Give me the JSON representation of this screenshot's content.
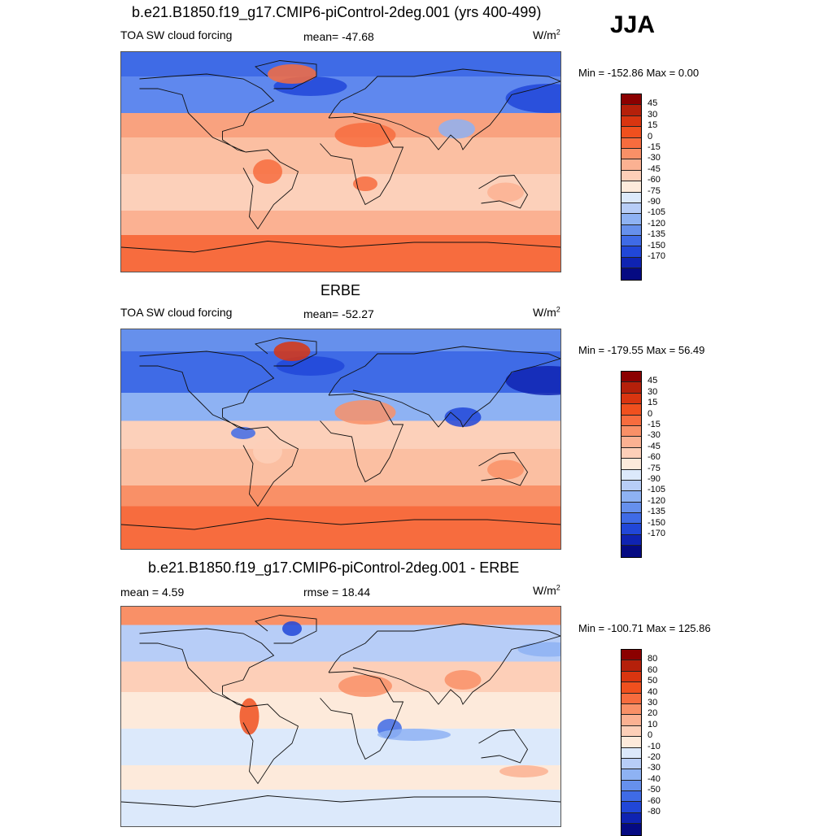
{
  "season": "JJA",
  "panels": [
    {
      "title": "b.e21.B1850.f19_g17.CMIP6-piControl-2deg.001 (yrs 400-499)",
      "left_label": "TOA SW cloud forcing",
      "center_label": "mean= -47.68",
      "unit": "W/m",
      "unit_exp": "2",
      "minmax": "Min = -152.86 Max =   0.00",
      "colorbar": {
        "colors": [
          "#8b0000",
          "#b5200a",
          "#d93510",
          "#f0501e",
          "#f76c3e",
          "#f99067",
          "#fbb192",
          "#fdcfb8",
          "#fdeadb",
          "#dce9fb",
          "#b7cdf7",
          "#8eb2f3",
          "#6690ec",
          "#3f6be6",
          "#2147d8",
          "#0f23b2",
          "#050a82"
        ],
        "ticks": [
          "45",
          "30",
          "15",
          "0",
          "-15",
          "-30",
          "-45",
          "-60",
          "-75",
          "-90",
          "-105",
          "-120",
          "-135",
          "-150",
          "-170"
        ]
      },
      "map": {
        "ocean": "#fbbfa2",
        "bands": [
          {
            "lat_top": 90,
            "lat_bot": 70,
            "color": "#3f6be6"
          },
          {
            "lat_top": 70,
            "lat_bot": 40,
            "color": "#5f88ee"
          },
          {
            "lat_top": 40,
            "lat_bot": 20,
            "color": "#f9a27f"
          },
          {
            "lat_top": 20,
            "lat_bot": -10,
            "color": "#fbbfa2"
          },
          {
            "lat_top": -10,
            "lat_bot": -40,
            "color": "#fcd0ba"
          },
          {
            "lat_top": -40,
            "lat_bot": -60,
            "color": "#fbb192"
          },
          {
            "lat_top": -60,
            "lat_bot": -90,
            "color": "#f76c3e"
          }
        ],
        "blobs": [
          {
            "lon": 170,
            "lat": 52,
            "rx": 35,
            "ry": 12,
            "color": "#2147d8"
          },
          {
            "lon": -25,
            "lat": 62,
            "rx": 30,
            "ry": 8,
            "color": "#2147d8"
          },
          {
            "lon": 95,
            "lat": 27,
            "rx": 15,
            "ry": 8,
            "color": "#8eb2f3"
          },
          {
            "lon": 20,
            "lat": 22,
            "rx": 25,
            "ry": 10,
            "color": "#f76c3e"
          },
          {
            "lon": -60,
            "lat": -8,
            "rx": 12,
            "ry": 10,
            "color": "#f76c3e"
          },
          {
            "lon": -40,
            "lat": 72,
            "rx": 20,
            "ry": 8,
            "color": "#f76c3e"
          },
          {
            "lon": 135,
            "lat": -25,
            "rx": 15,
            "ry": 8,
            "color": "#fbb192"
          },
          {
            "lon": 20,
            "lat": -18,
            "rx": 10,
            "ry": 6,
            "color": "#f76c3e"
          }
        ]
      }
    },
    {
      "title": "ERBE",
      "left_label": "TOA SW cloud forcing",
      "center_label": "mean= -52.27",
      "unit": "W/m",
      "unit_exp": "2",
      "minmax": "Min = -179.55 Max =  56.49",
      "colorbar": {
        "colors": [
          "#8b0000",
          "#b5200a",
          "#d93510",
          "#f0501e",
          "#f76c3e",
          "#f99067",
          "#fbb192",
          "#fdcfb8",
          "#fdeadb",
          "#dce9fb",
          "#b7cdf7",
          "#8eb2f3",
          "#6690ec",
          "#3f6be6",
          "#2147d8",
          "#0f23b2",
          "#050a82"
        ],
        "ticks": [
          "45",
          "30",
          "15",
          "0",
          "-15",
          "-30",
          "-45",
          "-60",
          "-75",
          "-90",
          "-105",
          "-120",
          "-135",
          "-150",
          "-170"
        ]
      },
      "map": {
        "ocean": "#fbbfa2",
        "bands": [
          {
            "lat_top": 90,
            "lat_bot": 72,
            "color": "#6690ec"
          },
          {
            "lat_top": 72,
            "lat_bot": 38,
            "color": "#3f6be6"
          },
          {
            "lat_top": 38,
            "lat_bot": 15,
            "color": "#8eb2f3"
          },
          {
            "lat_top": 15,
            "lat_bot": -8,
            "color": "#fcd0ba"
          },
          {
            "lat_top": -8,
            "lat_bot": -38,
            "color": "#fbbfa2"
          },
          {
            "lat_top": -38,
            "lat_bot": -55,
            "color": "#f99067"
          },
          {
            "lat_top": -55,
            "lat_bot": -90,
            "color": "#f76c3e"
          }
        ],
        "blobs": [
          {
            "lon": 170,
            "lat": 48,
            "rx": 35,
            "ry": 12,
            "color": "#0f23b2"
          },
          {
            "lon": -25,
            "lat": 60,
            "rx": 28,
            "ry": 8,
            "color": "#2147d8"
          },
          {
            "lon": 100,
            "lat": 18,
            "rx": 15,
            "ry": 8,
            "color": "#2147d8"
          },
          {
            "lon": -80,
            "lat": 5,
            "rx": 10,
            "ry": 5,
            "color": "#3f6be6"
          },
          {
            "lon": 20,
            "lat": 22,
            "rx": 25,
            "ry": 10,
            "color": "#f99067"
          },
          {
            "lon": -40,
            "lat": 72,
            "rx": 15,
            "ry": 8,
            "color": "#d93510"
          },
          {
            "lon": 135,
            "lat": -25,
            "rx": 15,
            "ry": 8,
            "color": "#f99067"
          },
          {
            "lon": -60,
            "lat": -10,
            "rx": 12,
            "ry": 10,
            "color": "#fdcfb8"
          }
        ]
      }
    },
    {
      "title": "b.e21.B1850.f19_g17.CMIP6-piControl-2deg.001 - ERBE",
      "left_label": "mean =   4.59",
      "center_label": "rmse =  18.44",
      "unit": "W/m",
      "unit_exp": "2",
      "minmax": "Min = -100.71 Max = 125.86",
      "colorbar": {
        "colors": [
          "#8b0000",
          "#b5200a",
          "#d93510",
          "#f0501e",
          "#f76c3e",
          "#f99067",
          "#fbb192",
          "#fdcfb8",
          "#fdeadb",
          "#dce9fb",
          "#b7cdf7",
          "#8eb2f3",
          "#6690ec",
          "#3f6be6",
          "#2147d8",
          "#0f23b2",
          "#050a82"
        ],
        "ticks": [
          "80",
          "60",
          "50",
          "40",
          "30",
          "20",
          "10",
          "0",
          "-10",
          "-20",
          "-30",
          "-40",
          "-50",
          "-60",
          "-80"
        ]
      },
      "map": {
        "ocean": "#fdeadb",
        "bands": [
          {
            "lat_top": 90,
            "lat_bot": 75,
            "color": "#f99067"
          },
          {
            "lat_top": 75,
            "lat_bot": 45,
            "color": "#b7cdf7"
          },
          {
            "lat_top": 45,
            "lat_bot": 20,
            "color": "#fdcfb8"
          },
          {
            "lat_top": 20,
            "lat_bot": -10,
            "color": "#fdeadb"
          },
          {
            "lat_top": -10,
            "lat_bot": -40,
            "color": "#dce9fb"
          },
          {
            "lat_top": -40,
            "lat_bot": -60,
            "color": "#fdeadb"
          },
          {
            "lat_top": -60,
            "lat_bot": -90,
            "color": "#dce9fb"
          }
        ],
        "blobs": [
          {
            "lon": 20,
            "lat": 25,
            "rx": 22,
            "ry": 9,
            "color": "#f99067"
          },
          {
            "lon": -75,
            "lat": 0,
            "rx": 8,
            "ry": 15,
            "color": "#f0501e"
          },
          {
            "lon": 40,
            "lat": -10,
            "rx": 10,
            "ry": 8,
            "color": "#3f6be6"
          },
          {
            "lon": -40,
            "lat": 72,
            "rx": 8,
            "ry": 6,
            "color": "#2147d8"
          },
          {
            "lon": 100,
            "lat": 30,
            "rx": 15,
            "ry": 8,
            "color": "#f99067"
          },
          {
            "lon": 170,
            "lat": 55,
            "rx": 25,
            "ry": 6,
            "color": "#8eb2f3"
          },
          {
            "lon": 60,
            "lat": -15,
            "rx": 30,
            "ry": 5,
            "color": "#8eb2f3"
          },
          {
            "lon": 150,
            "lat": -45,
            "rx": 20,
            "ry": 5,
            "color": "#fbb192"
          }
        ]
      }
    }
  ]
}
